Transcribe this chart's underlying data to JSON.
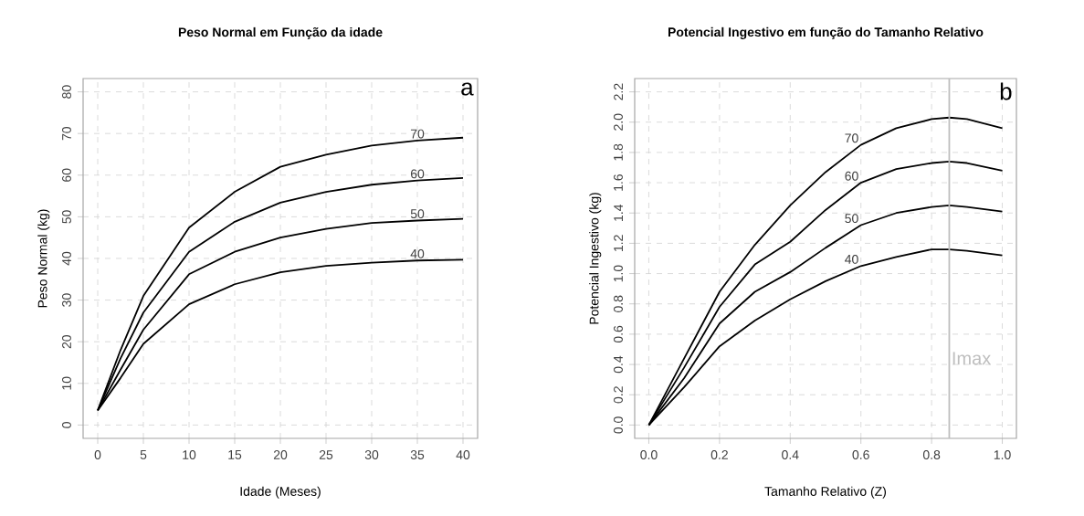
{
  "chart_data": [
    {
      "type": "line",
      "title": "Peso Normal em Função da idade",
      "xlabel": "Idade (Meses)",
      "ylabel": "Peso Normal (kg)",
      "x": [
        0,
        2.5,
        5,
        10,
        15,
        20,
        25,
        30,
        35,
        40
      ],
      "series": [
        {
          "name": "70",
          "color": "#000000",
          "values": [
            3.5,
            18,
            31,
            47.4,
            56,
            62,
            64.9,
            67.1,
            68.3,
            69
          ]
        },
        {
          "name": "60",
          "color": "#000000",
          "values": [
            3.5,
            16,
            27,
            41.6,
            48.8,
            53.4,
            56,
            57.7,
            58.7,
            59.3
          ]
        },
        {
          "name": "50",
          "color": "#000000",
          "values": [
            3.5,
            13.3,
            22.9,
            36.2,
            41.6,
            45,
            47.1,
            48.5,
            49.1,
            49.5
          ]
        },
        {
          "name": "40",
          "color": "#000000",
          "values": [
            3.5,
            11.3,
            19.5,
            29,
            33.8,
            36.7,
            38.2,
            39,
            39.5,
            39.7
          ]
        }
      ],
      "xlim": [
        -1.6,
        41.6
      ],
      "ylim": [
        -3.2,
        83.2
      ],
      "xticks": [
        0,
        5,
        10,
        15,
        20,
        25,
        30,
        35,
        40
      ],
      "yticks": [
        0,
        10,
        20,
        30,
        40,
        50,
        60,
        70,
        80
      ],
      "grid": true,
      "annotations": [
        "a"
      ]
    },
    {
      "type": "line",
      "title": "Potencial Ingestivo em função do Tamanho Relativo",
      "xlabel": "Tamanho Relativo (Z)",
      "ylabel": "Potencial Ingestivo (kg)",
      "x": [
        0,
        0.1,
        0.2,
        0.3,
        0.4,
        0.5,
        0.6,
        0.7,
        0.8,
        0.85,
        0.9,
        1.0
      ],
      "series": [
        {
          "name": "70",
          "color": "#000000",
          "values": [
            0,
            0.44,
            0.88,
            1.19,
            1.45,
            1.67,
            1.85,
            1.96,
            2.02,
            2.03,
            2.02,
            1.96
          ]
        },
        {
          "name": "60",
          "color": "#000000",
          "values": [
            0,
            0.38,
            0.78,
            1.06,
            1.21,
            1.42,
            1.6,
            1.69,
            1.73,
            1.74,
            1.73,
            1.68
          ]
        },
        {
          "name": "50",
          "color": "#000000",
          "values": [
            0,
            0.31,
            0.67,
            0.88,
            1.01,
            1.17,
            1.32,
            1.4,
            1.44,
            1.45,
            1.44,
            1.41
          ]
        },
        {
          "name": "40",
          "color": "#000000",
          "values": [
            0,
            0.25,
            0.52,
            0.69,
            0.83,
            0.95,
            1.05,
            1.11,
            1.16,
            1.16,
            1.15,
            1.12
          ]
        }
      ],
      "xlim": [
        -0.04,
        1.04
      ],
      "ylim": [
        -0.088,
        2.288
      ],
      "xticks": [
        {
          "value": 0,
          "label": "0.0"
        },
        0.2,
        0.4,
        0.6,
        0.8,
        {
          "value": 1,
          "label": "1.0"
        }
      ],
      "yticks": [
        {
          "value": 0,
          "label": "0.0"
        },
        0.2,
        0.4,
        0.6,
        0.8,
        {
          "value": 1,
          "label": "1.0"
        },
        1.2,
        1.4,
        1.6,
        1.8,
        {
          "value": 2,
          "label": "2.0"
        },
        2.2
      ],
      "ref_lines": [
        {
          "axis": "x",
          "value": 0.85,
          "label": "Imax",
          "color": "#bebebe"
        }
      ],
      "grid": true,
      "annotations": [
        "b"
      ]
    }
  ]
}
